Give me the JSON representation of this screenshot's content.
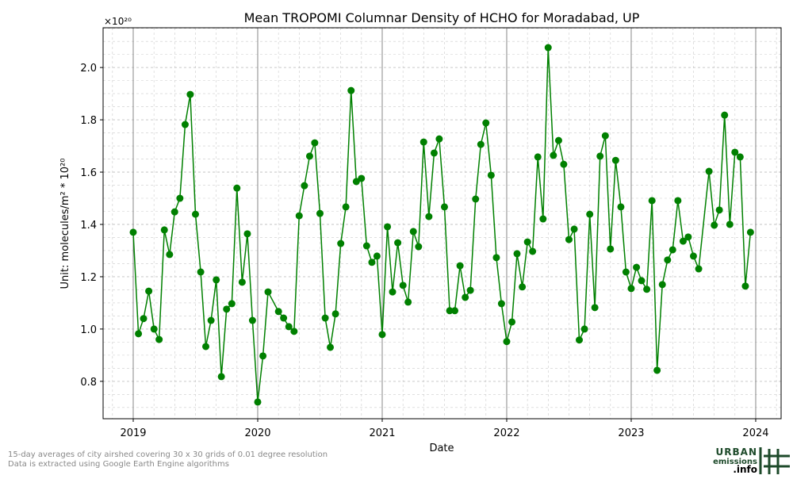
{
  "chart_data": {
    "type": "line",
    "title": "Mean TROPOMI Columnar Density of HCHO for Moradabad, UP",
    "x_label": "Date",
    "y_label": "Unit: molecules/m² * 10²⁰",
    "y_offset_label": "×10²⁰",
    "color": "#008000",
    "grid": true,
    "x": [
      2019,
      2019.042,
      2019.083,
      2019.125,
      2019.167,
      2019.208,
      2019.25,
      2019.292,
      2019.333,
      2019.375,
      2019.417,
      2019.458,
      2019.5,
      2019.542,
      2019.583,
      2019.625,
      2019.667,
      2019.708,
      2019.75,
      2019.792,
      2019.833,
      2019.875,
      2019.917,
      2019.958,
      2020,
      2020.042,
      2020.083,
      2020.167,
      2020.208,
      2020.25,
      2020.292,
      2020.333,
      2020.375,
      2020.417,
      2020.458,
      2020.5,
      2020.542,
      2020.583,
      2020.625,
      2020.667,
      2020.708,
      2020.75,
      2020.792,
      2020.833,
      2020.875,
      2020.917,
      2020.958,
      2021,
      2021.042,
      2021.083,
      2021.125,
      2021.167,
      2021.208,
      2021.25,
      2021.292,
      2021.333,
      2021.375,
      2021.417,
      2021.458,
      2021.5,
      2021.542,
      2021.583,
      2021.625,
      2021.667,
      2021.708,
      2021.75,
      2021.792,
      2021.833,
      2021.875,
      2021.917,
      2021.958,
      2022,
      2022.042,
      2022.083,
      2022.125,
      2022.167,
      2022.208,
      2022.25,
      2022.292,
      2022.333,
      2022.375,
      2022.417,
      2022.458,
      2022.5,
      2022.542,
      2022.583,
      2022.625,
      2022.667,
      2022.708,
      2022.75,
      2022.792,
      2022.833,
      2022.875,
      2022.917,
      2022.958,
      2023,
      2023.042,
      2023.083,
      2023.125,
      2023.167,
      2023.208,
      2023.25,
      2023.292,
      2023.333,
      2023.375,
      2023.417,
      2023.458,
      2023.5,
      2023.542,
      2023.625,
      2023.667,
      2023.708,
      2023.75,
      2023.792,
      2023.833,
      2023.875,
      2023.917,
      2023.958
    ],
    "values": [
      1.37,
      0.982,
      1.04,
      1.145,
      1.0,
      0.96,
      1.379,
      1.285,
      1.448,
      1.5,
      1.782,
      1.897,
      1.439,
      1.218,
      0.933,
      1.033,
      1.188,
      0.818,
      1.076,
      1.097,
      1.539,
      1.179,
      1.364,
      1.033,
      0.721,
      0.897,
      1.142,
      1.067,
      1.042,
      1.009,
      0.991,
      1.433,
      1.548,
      1.661,
      1.712,
      1.442,
      1.042,
      0.93,
      1.058,
      1.327,
      1.467,
      1.912,
      1.564,
      1.576,
      1.318,
      1.255,
      1.279,
      0.979,
      1.391,
      1.142,
      1.33,
      1.167,
      1.103,
      1.373,
      1.315,
      1.715,
      1.43,
      1.673,
      1.727,
      1.467,
      1.07,
      1.07,
      1.242,
      1.121,
      1.148,
      1.497,
      1.706,
      1.788,
      1.588,
      1.273,
      1.097,
      0.952,
      1.027,
      1.288,
      1.161,
      1.333,
      1.297,
      1.658,
      1.421,
      2.076,
      1.664,
      1.721,
      1.63,
      1.342,
      1.382,
      0.958,
      1.0,
      1.439,
      1.082,
      1.661,
      1.739,
      1.306,
      1.645,
      1.467,
      1.218,
      1.155,
      1.236,
      1.185,
      1.152,
      1.491,
      0.842,
      1.17,
      1.264,
      1.303,
      1.491,
      1.336,
      1.352,
      1.279,
      1.23,
      1.603,
      1.397,
      1.455,
      1.818,
      1.4,
      1.676,
      1.658,
      1.164,
      1.37
    ],
    "xlim": [
      2018.758,
      2024.204
    ],
    "xticks": [
      2019,
      2020,
      2021,
      2022,
      2023,
      2024
    ],
    "ylim": [
      0.657,
      2.152
    ],
    "yticks": [
      0.8,
      {
        "value": 1,
        "label": "1.0"
      },
      1.2,
      1.4,
      1.6,
      1.8,
      {
        "value": 2,
        "label": "2.0"
      }
    ]
  },
  "footer": {
    "lines": [
      "15-day averages of city airshed covering 30 x 30 grids of 0.01 degree resolution",
      "Data is extracted using Google Earth Engine algorithms"
    ]
  },
  "logo": {
    "line1": "URBAN",
    "line2": "emissions",
    "line3": ".info"
  }
}
